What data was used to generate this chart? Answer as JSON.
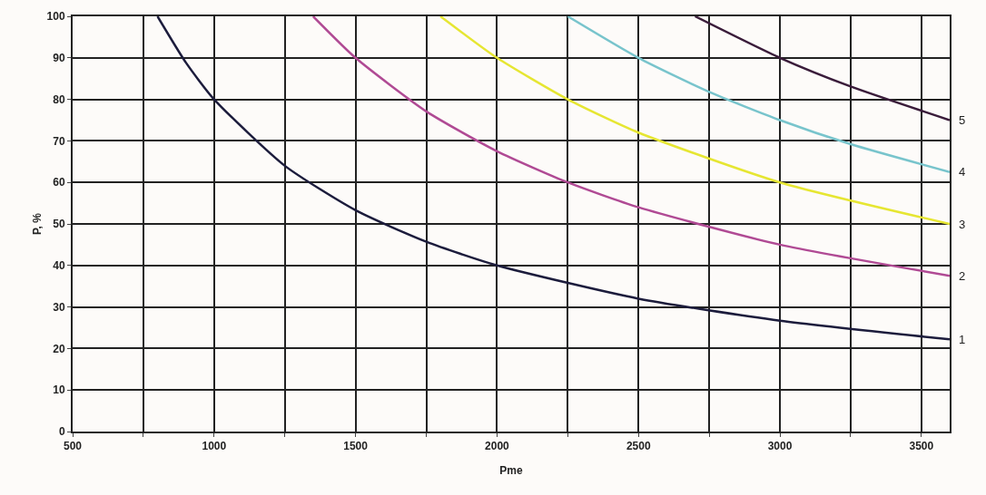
{
  "chart_data": {
    "type": "line",
    "xlabel": "Pme",
    "ylabel": "P, %",
    "xlim": [
      500,
      3600
    ],
    "ylim": [
      0,
      100
    ],
    "xticks": [
      500,
      {
        "value": 750,
        "label": null
      },
      1000,
      {
        "value": 1250,
        "label": null
      },
      1500,
      {
        "value": 1750,
        "label": null
      },
      2000,
      {
        "value": 2250,
        "label": null
      },
      2500,
      {
        "value": 2750,
        "label": null
      },
      3000,
      {
        "value": 3250,
        "label": null
      },
      3500
    ],
    "yticks": [
      0,
      10,
      20,
      30,
      40,
      50,
      60,
      70,
      80,
      90,
      100
    ],
    "grid": true,
    "marker": "none",
    "line_style": "solid",
    "series": [
      {
        "name": "1",
        "color": "#1c1c3c",
        "x": [
          800,
          900,
          1000,
          1250,
          1500,
          1750,
          2000,
          2500,
          3000,
          3600
        ],
        "values": [
          100,
          88.9,
          80,
          64,
          53.3,
          45.7,
          40,
          32,
          26.7,
          22.2
        ]
      },
      {
        "name": "2",
        "color": "#b04a94",
        "x": [
          1350,
          1500,
          1750,
          2000,
          2250,
          2500,
          3000,
          3600
        ],
        "values": [
          100,
          90,
          77.1,
          67.5,
          60,
          54,
          45,
          37.5
        ]
      },
      {
        "name": "3",
        "color": "#e6e632",
        "x": [
          1800,
          2000,
          2250,
          2500,
          3000,
          3600
        ],
        "values": [
          100,
          90,
          80,
          72,
          60,
          50
        ]
      },
      {
        "name": "4",
        "color": "#78c4cc",
        "x": [
          2250,
          2500,
          2750,
          3000,
          3250,
          3600
        ],
        "values": [
          100,
          90,
          81.8,
          75,
          69.2,
          62.5
        ]
      },
      {
        "name": "5",
        "color": "#3a1c3a",
        "x": [
          2700,
          3000,
          3250,
          3600
        ],
        "values": [
          100,
          90,
          83.1,
          75
        ]
      }
    ]
  }
}
